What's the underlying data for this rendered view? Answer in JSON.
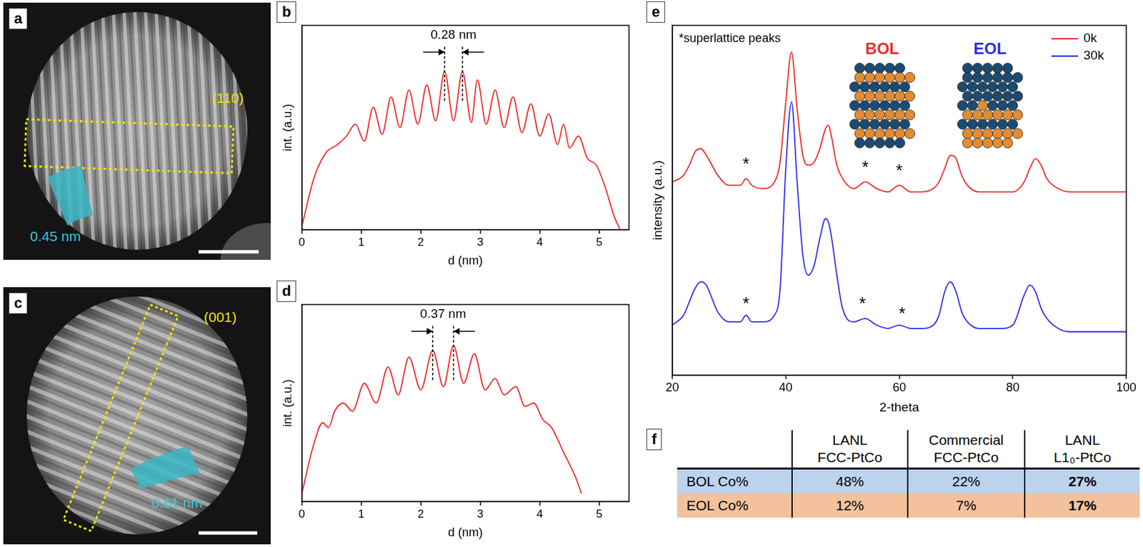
{
  "images": [
    {
      "label": "a",
      "annotations": [
        "(110)",
        "0.45 nm"
      ]
    },
    {
      "label": "c",
      "annotations": [
        "(001)",
        "0.61 nm"
      ]
    }
  ],
  "chart_data": [
    {
      "label": "b",
      "type": "line",
      "xlabel": "d (nm)",
      "ylabel": "int. (a.u.)",
      "x": [
        0,
        0.2,
        0.4,
        0.6,
        0.75,
        0.9,
        1.05,
        1.2,
        1.35,
        1.5,
        1.65,
        1.8,
        1.95,
        2.1,
        2.25,
        2.4,
        2.55,
        2.7,
        2.85,
        2.95,
        3.1,
        3.25,
        3.4,
        3.55,
        3.7,
        3.85,
        4.0,
        4.15,
        4.3,
        4.4,
        4.5,
        4.65,
        4.8,
        4.95,
        5.1,
        5.25,
        5.35
      ],
      "values": [
        0.02,
        0.3,
        0.45,
        0.5,
        0.55,
        0.62,
        0.52,
        0.72,
        0.56,
        0.78,
        0.6,
        0.82,
        0.62,
        0.85,
        0.64,
        0.93,
        0.64,
        0.93,
        0.63,
        0.88,
        0.62,
        0.82,
        0.6,
        0.78,
        0.57,
        0.74,
        0.55,
        0.68,
        0.5,
        0.62,
        0.48,
        0.55,
        0.42,
        0.38,
        0.25,
        0.08,
        0.0
      ],
      "color": "#f02828",
      "xlim": [
        0,
        5.5
      ],
      "xticks": [
        0,
        1,
        2,
        3,
        4,
        5
      ],
      "ylim": [
        0,
        1.2
      ],
      "yticks": [],
      "grid": false,
      "tick_labels": "x",
      "annotations": [
        {
          "text": "0.28 nm",
          "x": [
            2.4,
            2.7
          ]
        }
      ]
    },
    {
      "label": "d",
      "type": "line",
      "xlabel": "d (nm)",
      "ylabel": "int. (a.u.)",
      "x": [
        0,
        0.2,
        0.35,
        0.45,
        0.55,
        0.7,
        0.85,
        1.05,
        1.25,
        1.45,
        1.62,
        1.8,
        2.0,
        2.2,
        2.38,
        2.55,
        2.72,
        2.9,
        3.08,
        3.25,
        3.4,
        3.6,
        3.75,
        3.9,
        4.05,
        4.2,
        4.4,
        4.6,
        4.7
      ],
      "values": [
        0.05,
        0.35,
        0.48,
        0.45,
        0.55,
        0.6,
        0.55,
        0.72,
        0.6,
        0.82,
        0.65,
        0.88,
        0.68,
        0.92,
        0.7,
        0.95,
        0.72,
        0.9,
        0.68,
        0.75,
        0.65,
        0.7,
        0.58,
        0.6,
        0.5,
        0.45,
        0.3,
        0.15,
        0.05
      ],
      "color": "#f02828",
      "xlim": [
        0,
        5.5
      ],
      "xticks": [
        0,
        1,
        2,
        3,
        4,
        5
      ],
      "ylim": [
        0,
        1.2
      ],
      "yticks": [],
      "grid": false,
      "tick_labels": "x",
      "annotations": [
        {
          "text": "0.37 nm",
          "x": [
            2.2,
            2.55
          ]
        }
      ]
    },
    {
      "label": "e",
      "type": "line",
      "xlabel": "2-theta",
      "ylabel": "intensity (a.u.)",
      "x": [
        20,
        22,
        23,
        24,
        25,
        26,
        27,
        28,
        30,
        32,
        33,
        34,
        36,
        38,
        39,
        40,
        41,
        42,
        43,
        44,
        45,
        46,
        47,
        47.5,
        48,
        49,
        50,
        52,
        54,
        56,
        58,
        60,
        62,
        64,
        66,
        67,
        68,
        69,
        70,
        71,
        72,
        74,
        76,
        78,
        80,
        82,
        83,
        84,
        85,
        86,
        88,
        90,
        95,
        100
      ],
      "series": [
        {
          "name": "0k",
          "color": "#f02828",
          "values": [
            0.58,
            0.6,
            0.63,
            0.67,
            0.68,
            0.66,
            0.63,
            0.6,
            0.57,
            0.57,
            0.59,
            0.57,
            0.56,
            0.58,
            0.64,
            0.82,
            0.97,
            0.8,
            0.66,
            0.63,
            0.64,
            0.68,
            0.74,
            0.75,
            0.72,
            0.63,
            0.59,
            0.56,
            0.58,
            0.56,
            0.55,
            0.57,
            0.55,
            0.55,
            0.56,
            0.58,
            0.62,
            0.66,
            0.65,
            0.6,
            0.57,
            0.55,
            0.55,
            0.55,
            0.55,
            0.58,
            0.62,
            0.65,
            0.63,
            0.59,
            0.56,
            0.55,
            0.55,
            0.55
          ]
        },
        {
          "name": "30k",
          "color": "#2b2bef",
          "values": [
            0.15,
            0.18,
            0.22,
            0.26,
            0.28,
            0.27,
            0.23,
            0.19,
            0.16,
            0.16,
            0.18,
            0.16,
            0.16,
            0.18,
            0.26,
            0.62,
            0.82,
            0.58,
            0.36,
            0.3,
            0.33,
            0.41,
            0.47,
            0.46,
            0.42,
            0.3,
            0.2,
            0.16,
            0.17,
            0.15,
            0.14,
            0.15,
            0.14,
            0.14,
            0.15,
            0.18,
            0.25,
            0.28,
            0.25,
            0.19,
            0.16,
            0.14,
            0.14,
            0.14,
            0.15,
            0.24,
            0.27,
            0.25,
            0.2,
            0.17,
            0.14,
            0.13,
            0.13,
            0.13
          ]
        }
      ],
      "xlim": [
        20,
        100
      ],
      "xticks": [
        20,
        40,
        60,
        80,
        100
      ],
      "ylim": [
        0,
        1.05
      ],
      "yticks": [],
      "grid": false,
      "tick_labels": "x",
      "legend": "top-right",
      "annotations": [
        {
          "text": "*superlattice peaks"
        },
        {
          "text": "BOL",
          "color": "#f02828"
        },
        {
          "text": "EOL",
          "color": "#2b2bef"
        },
        {
          "text": "*",
          "x": 33,
          "y": 0.64
        },
        {
          "text": "*",
          "x": 54,
          "y": 0.63
        },
        {
          "text": "*",
          "x": 60,
          "y": 0.62
        },
        {
          "text": "*",
          "x": 33,
          "y": 0.22
        },
        {
          "text": "*",
          "x": 53.5,
          "y": 0.22
        },
        {
          "text": "*",
          "x": 60.5,
          "y": 0.19
        }
      ]
    }
  ],
  "table": {
    "label": "f",
    "header": [
      "LANL FCC-PtCo",
      "Commercial FCC-PtCo",
      "LANL L1₀-PtCo"
    ],
    "rows": [
      [
        "BOL Co%",
        "48%",
        "22%",
        "27%"
      ],
      [
        "EOL Co%",
        "12%",
        "7%",
        "17%"
      ]
    ]
  }
}
